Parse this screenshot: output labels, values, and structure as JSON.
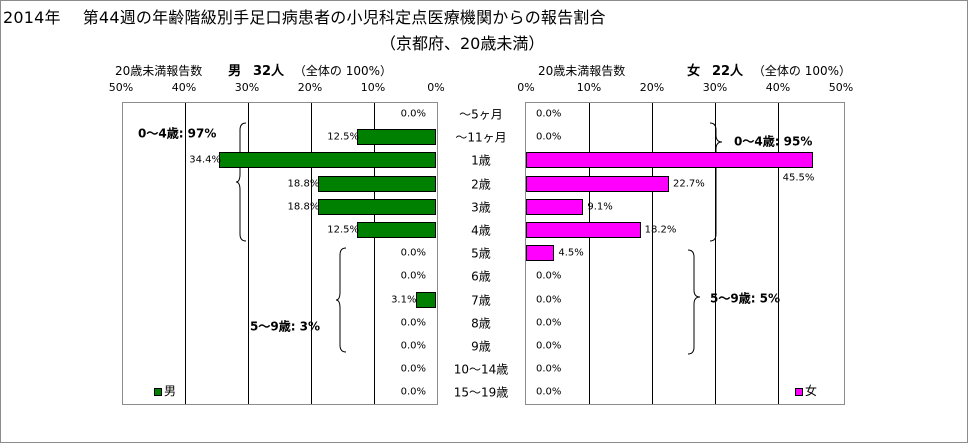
{
  "title_line1_year": "2014年",
  "title_line1": "第44週の年齢階級別手足口病患者の小児科定点医療機関からの報告割合",
  "title_line2": "（京都府、20歳未満）",
  "colors": {
    "male": "#008000",
    "female": "#ff00ff"
  },
  "chart_data": [
    {
      "type": "bar",
      "orientation": "horizontal",
      "direction": "right-to-left",
      "header_left": "20歳未満報告数",
      "header_sex": "男",
      "header_count": "32人",
      "header_total": "（全体の 100%）",
      "ticks": [
        "50%",
        "40%",
        "30%",
        "20%",
        "10%",
        "0%"
      ],
      "xlim": [
        0,
        50
      ],
      "categories": [
        "～5ヶ月",
        "～11ヶ月",
        "1歳",
        "2歳",
        "3歳",
        "4歳",
        "5歳",
        "6歳",
        "7歳",
        "8歳",
        "9歳",
        "10～14歳",
        "15～19歳"
      ],
      "values": [
        0.0,
        12.5,
        34.4,
        18.8,
        18.8,
        12.5,
        0.0,
        0.0,
        3.1,
        0.0,
        0.0,
        0.0,
        0.0
      ],
      "value_labels": [
        "0.0%",
        "12.5%",
        "34.4%",
        "18.8%",
        "18.8%",
        "12.5%",
        "0.0%",
        "0.0%",
        "3.1%",
        "0.0%",
        "0.0%",
        "0.0%",
        "0.0%"
      ],
      "group_labels": [
        "0～4歳: 97%",
        "5～9歳: 3%"
      ],
      "legend": "男"
    },
    {
      "type": "bar",
      "orientation": "horizontal",
      "direction": "left-to-right",
      "header_left": "20歳未満報告数",
      "header_sex": "女",
      "header_count": "22人",
      "header_total": "（全体の 100%）",
      "ticks": [
        "0%",
        "10%",
        "20%",
        "30%",
        "40%",
        "50%"
      ],
      "xlim": [
        0,
        50
      ],
      "categories": [
        "～5ヶ月",
        "～11ヶ月",
        "1歳",
        "2歳",
        "3歳",
        "4歳",
        "5歳",
        "6歳",
        "7歳",
        "8歳",
        "9歳",
        "10～14歳",
        "15～19歳"
      ],
      "values": [
        0.0,
        0.0,
        45.5,
        22.7,
        9.1,
        18.2,
        4.5,
        0.0,
        0.0,
        0.0,
        0.0,
        0.0,
        0.0
      ],
      "value_labels": [
        "0.0%",
        "0.0%",
        "45.5%",
        "22.7%",
        "9.1%",
        "18.2%",
        "4.5%",
        "0.0%",
        "0.0%",
        "0.0%",
        "0.0%",
        "0.0%",
        "0.0%"
      ],
      "group_labels": [
        "0～4歳: 95%",
        "5～9歳: 5%"
      ],
      "legend": "女"
    }
  ]
}
